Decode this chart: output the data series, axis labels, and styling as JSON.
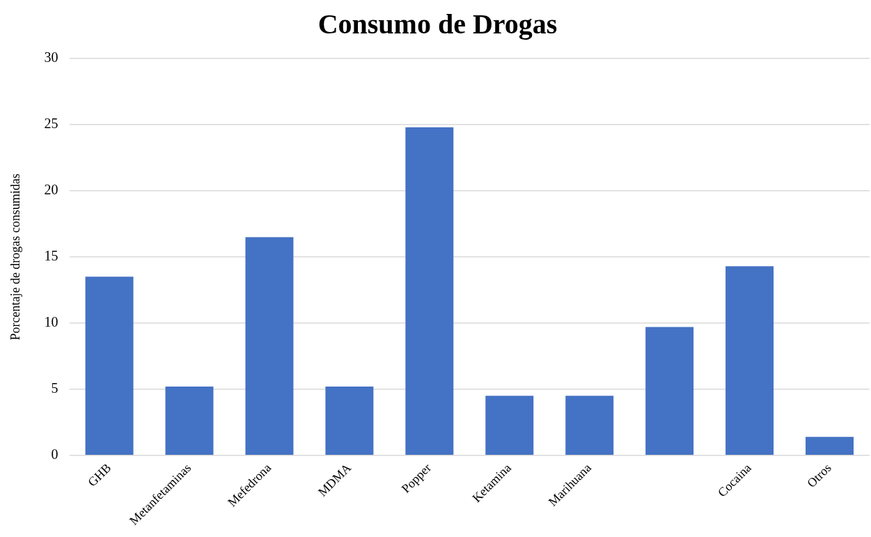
{
  "chart_data": {
    "type": "bar",
    "title": "Consumo de Drogas",
    "ylabel": "Porcentaje de drogas consumidas",
    "categories": [
      "GHB",
      "Metanfetaminas",
      "Mefedrona",
      "MDMA",
      "Popper",
      "Ketamina",
      "Marihuana",
      null,
      "Cocaina",
      "Otros"
    ],
    "values": [
      13.5,
      5.2,
      16.5,
      5.2,
      24.8,
      4.5,
      4.5,
      9.7,
      14.3,
      1.4
    ],
    "color": "#4472c4",
    "ylim": [
      0,
      30
    ],
    "yticks": [
      0,
      5,
      10,
      15,
      20,
      25,
      30
    ],
    "grid": "y",
    "legend": false
  }
}
